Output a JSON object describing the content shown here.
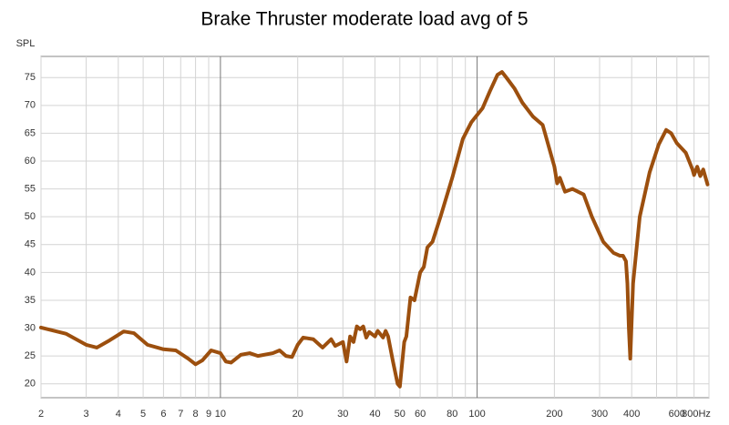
{
  "chart_data": {
    "type": "line",
    "title": "Brake Thruster moderate load avg of 5",
    "y_label": "SPL",
    "log_x": true,
    "grid": true,
    "xlim": [
      2,
      800
    ],
    "ylim": [
      17.5,
      78.8
    ],
    "xticks": [
      2,
      3,
      4,
      5,
      6,
      7,
      8,
      9,
      10,
      20,
      30,
      40,
      50,
      60,
      80,
      100,
      200,
      300,
      400,
      600,
      {
        "value": 800,
        "label": "800Hz"
      }
    ],
    "xgrid_minor": [
      70,
      90,
      500,
      700
    ],
    "yticks": [
      20,
      25,
      30,
      35,
      40,
      45,
      50,
      55,
      60,
      65,
      70,
      75
    ],
    "series": [
      {
        "name": "Brake Thruster moderate load avg of 5",
        "color": "#9c4f0e",
        "x": [
          2,
          2.5,
          3,
          3.3,
          3.7,
          4.2,
          4.6,
          5.2,
          6,
          6.7,
          7.5,
          8,
          8.5,
          9.2,
          10,
          10.5,
          11,
          12,
          13,
          14,
          16,
          17,
          18,
          19,
          20,
          21,
          23,
          25,
          27,
          28,
          30,
          31,
          32,
          33,
          34,
          35,
          36,
          37,
          38,
          40,
          41,
          43,
          44,
          45,
          47,
          49,
          50,
          52,
          53,
          55,
          57,
          60,
          62,
          64,
          67,
          72,
          80,
          88,
          95,
          105,
          112,
          120,
          125,
          130,
          140,
          150,
          165,
          180,
          200,
          205,
          210,
          220,
          235,
          260,
          280,
          310,
          340,
          360,
          370,
          380,
          385,
          390,
          395,
          405,
          430,
          470,
          510,
          545,
          570,
          600,
          650,
          690,
          700,
          720,
          740,
          760,
          790
        ],
        "values": [
          30.1,
          29,
          27,
          26.5,
          27.8,
          29.4,
          29.1,
          27,
          26.2,
          26,
          24.5,
          23.5,
          24.2,
          26,
          25.5,
          24,
          23.8,
          25.2,
          25.5,
          25,
          25.5,
          26,
          25,
          24.8,
          27,
          28.3,
          28,
          26.5,
          28,
          26.8,
          27.5,
          24,
          28.5,
          27.5,
          30.3,
          29.8,
          30.3,
          28.3,
          29.3,
          28.5,
          29.5,
          28.3,
          29.5,
          28.5,
          24,
          20,
          19.5,
          27.5,
          28.5,
          35.5,
          35,
          40,
          41,
          44.5,
          45.5,
          50,
          57,
          64,
          67,
          69.5,
          72.5,
          75.5,
          76,
          75,
          73,
          70.5,
          68,
          66.5,
          59,
          56,
          57,
          54.5,
          55,
          54,
          50,
          45.5,
          43.5,
          43,
          43,
          42,
          38,
          30,
          24.5,
          38,
          50,
          58,
          63,
          65.6,
          65,
          63.2,
          61.5,
          58.5,
          57.5,
          59,
          57.3,
          58.5,
          55.8
        ]
      }
    ]
  }
}
